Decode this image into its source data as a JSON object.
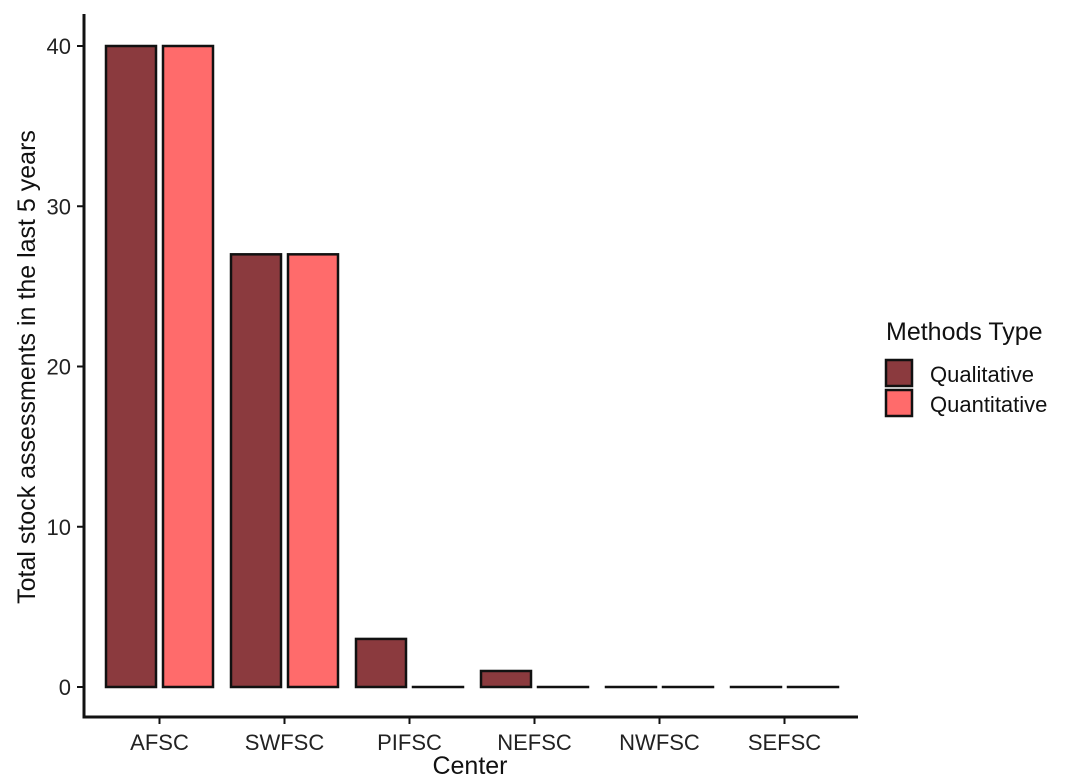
{
  "chart_data": {
    "type": "bar",
    "title": "",
    "xlabel": "Center",
    "ylabel": "Total stock assessments in the last 5 years",
    "categories": [
      "AFSC",
      "SWFSC",
      "PIFSC",
      "NEFSC",
      "NWFSC",
      "SEFSC"
    ],
    "series": [
      {
        "name": "Qualitative",
        "color": "#8b3a3e",
        "values": [
          40,
          27,
          3,
          1,
          0,
          0
        ]
      },
      {
        "name": "Quantitative",
        "color": "#ff6b6b",
        "values": [
          40,
          27,
          0,
          0,
          0,
          0
        ]
      }
    ],
    "ylim": [
      0,
      42
    ],
    "yticks": [
      0,
      10,
      20,
      30,
      40
    ],
    "grid": false,
    "legend": {
      "title": "Methods Type",
      "placement": "right"
    }
  }
}
